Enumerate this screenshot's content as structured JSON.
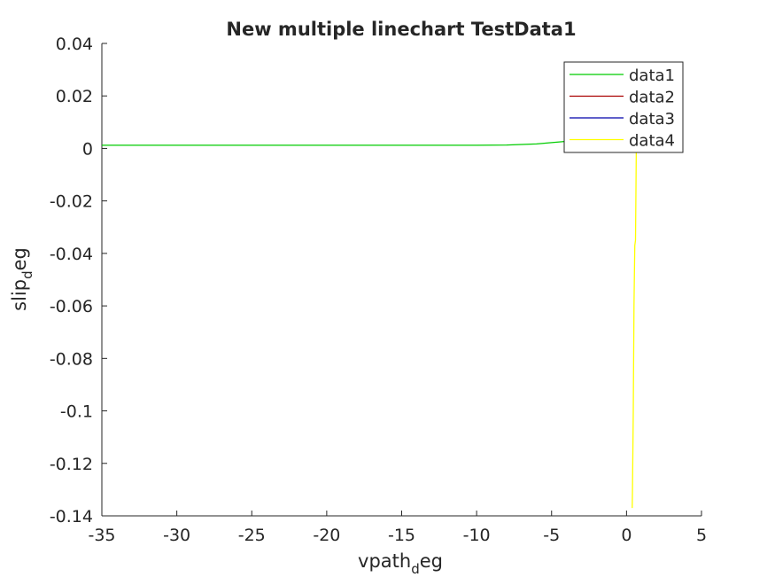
{
  "chart_data": {
    "type": "line",
    "title": "New multiple linechart TestData1",
    "xlabel_main": "vpath",
    "xlabel_sub": "d",
    "xlabel_tail": "eg",
    "ylabel_main": "slip",
    "ylabel_sub": "d",
    "ylabel_tail": "eg",
    "xlim": [
      -35,
      5
    ],
    "ylim": [
      -0.14,
      0.04
    ],
    "xticks": [
      -35,
      -30,
      -25,
      -20,
      -15,
      -10,
      -5,
      0,
      5
    ],
    "xtick_labels": [
      "-35",
      "-30",
      "-25",
      "-20",
      "-15",
      "-10",
      "-5",
      "0",
      "5"
    ],
    "yticks": [
      0.04,
      0.02,
      0,
      -0.02,
      -0.04,
      -0.06,
      -0.08,
      -0.1,
      -0.12,
      -0.14
    ],
    "ytick_labels": [
      "0.04",
      "0.02",
      "0",
      "-0.02",
      "-0.04",
      "-0.06",
      "-0.08",
      "-0.1",
      "-0.12",
      "-0.14"
    ],
    "grid": false,
    "legend_position": "top-right",
    "series": [
      {
        "name": "data1",
        "color": "#00cc00",
        "points": [
          [
            -35,
            0.0012
          ],
          [
            -30,
            0.0012
          ],
          [
            -25,
            0.0012
          ],
          [
            -20,
            0.0012
          ],
          [
            -15,
            0.0012
          ],
          [
            -10,
            0.0012
          ],
          [
            -8,
            0.0013
          ],
          [
            -6,
            0.0017
          ],
          [
            -5,
            0.0022
          ],
          [
            -4,
            0.0027
          ],
          [
            -3,
            0.0032
          ],
          [
            -2,
            0.0037
          ],
          [
            -1,
            0.0042
          ],
          [
            0,
            0.0047
          ],
          [
            0.4,
            0.005
          ]
        ]
      },
      {
        "name": "data2",
        "color": "#aa0000",
        "points": [
          [
            0.3,
            0.002
          ],
          [
            0.5,
            0.0
          ]
        ]
      },
      {
        "name": "data3",
        "color": "#0000aa",
        "points": [
          [
            0.3,
            0.001
          ],
          [
            0.5,
            -0.001
          ]
        ]
      },
      {
        "name": "data4",
        "color": "#ffff00",
        "points": [
          [
            0.65,
            0.0
          ],
          [
            0.62,
            -0.02
          ],
          [
            0.6,
            -0.035
          ],
          [
            0.55,
            -0.037
          ],
          [
            0.5,
            -0.06
          ],
          [
            0.45,
            -0.1
          ],
          [
            0.4,
            -0.13
          ],
          [
            0.38,
            -0.137
          ]
        ]
      }
    ]
  }
}
